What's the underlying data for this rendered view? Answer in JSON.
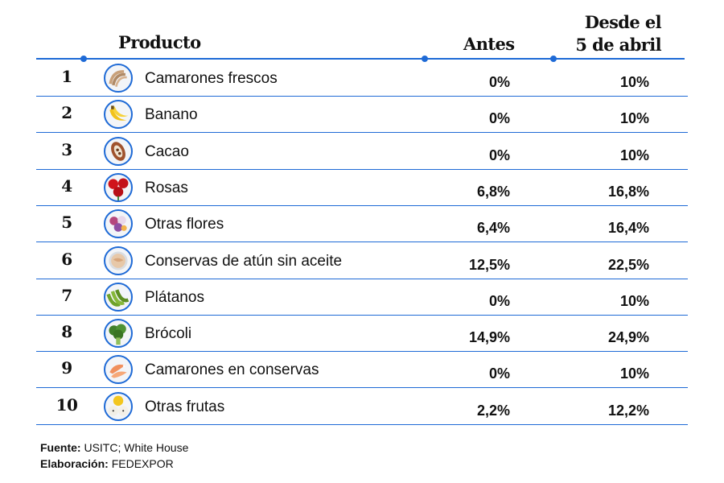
{
  "headers": {
    "producto": "Producto",
    "antes": "Antes",
    "desde_line1": "Desde el",
    "desde_line2": "5 de abril"
  },
  "chart_data": {
    "type": "table",
    "columns": [
      "Producto",
      "Antes",
      "Desde el 5 de abril"
    ],
    "rows": [
      {
        "rank": "1",
        "product": "Camarones frescos",
        "icon": "shrimp-icon",
        "antes": "0%",
        "desde": "10%",
        "antes_value": 0,
        "desde_value": 10
      },
      {
        "rank": "2",
        "product": "Banano",
        "icon": "banana-icon",
        "antes": "0%",
        "desde": "10%",
        "antes_value": 0,
        "desde_value": 10
      },
      {
        "rank": "3",
        "product": "Cacao",
        "icon": "cacao-icon",
        "antes": "0%",
        "desde": "10%",
        "antes_value": 0,
        "desde_value": 10
      },
      {
        "rank": "4",
        "product": "Rosas",
        "icon": "rose-icon",
        "antes": "6,8%",
        "desde": "16,8%",
        "antes_value": 6.8,
        "desde_value": 16.8
      },
      {
        "rank": "5",
        "product": "Otras flores",
        "icon": "flowers-icon",
        "antes": "6,4%",
        "desde": "16,4%",
        "antes_value": 6.4,
        "desde_value": 16.4
      },
      {
        "rank": "6",
        "product": "Conservas de atún sin aceite",
        "icon": "tuna-can-icon",
        "antes": "12,5%",
        "desde": "22,5%",
        "antes_value": 12.5,
        "desde_value": 22.5
      },
      {
        "rank": "7",
        "product": "Plátanos",
        "icon": "plantain-icon",
        "antes": "0%",
        "desde": "10%",
        "antes_value": 0,
        "desde_value": 10
      },
      {
        "rank": "8",
        "product": "Brócoli",
        "icon": "broccoli-icon",
        "antes": "14,9%",
        "desde": "24,9%",
        "antes_value": 14.9,
        "desde_value": 24.9
      },
      {
        "rank": "9",
        "product": "Camarones en conservas",
        "icon": "canned-shrimp-icon",
        "antes": "0%",
        "desde": "10%",
        "antes_value": 0,
        "desde_value": 10
      },
      {
        "rank": "10",
        "product": "Otras frutas",
        "icon": "fruits-icon",
        "antes": "2,2%",
        "desde": "12,2%",
        "antes_value": 2.2,
        "desde_value": 12.2
      }
    ]
  },
  "footer": {
    "fuente_label": "Fuente:",
    "fuente_value": "USITC; White House",
    "elaboracion_label": "Elaboración:",
    "elaboracion_value": "FEDEXPOR"
  },
  "colors": {
    "accent": "#1e6ad6",
    "text": "#111111"
  }
}
